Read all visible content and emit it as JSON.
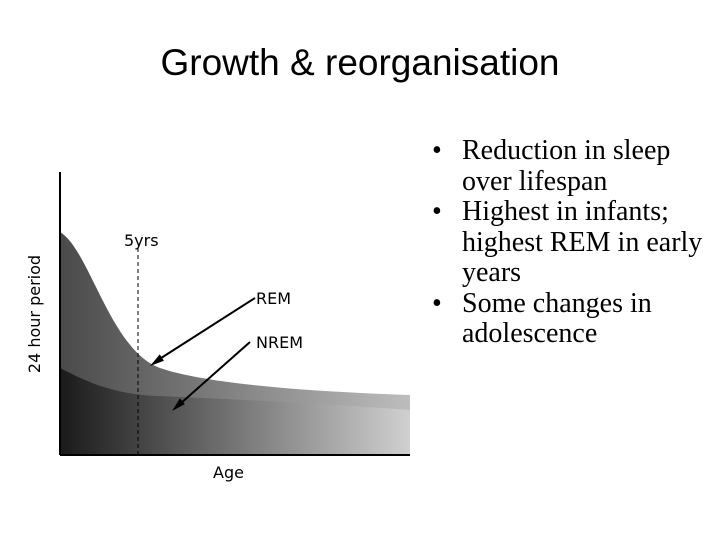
{
  "slide": {
    "title": "Growth & reorganisation"
  },
  "diagram": {
    "y_axis_label": "24 hour period",
    "x_axis_label": "Age",
    "marker_label": "5yrs",
    "rem_label": "REM",
    "nrem_label": "NREM"
  },
  "bullets": [
    "Reduction in sleep over lifespan",
    "Highest in infants; highest REM in early years",
    "Some changes in adolescence"
  ]
}
